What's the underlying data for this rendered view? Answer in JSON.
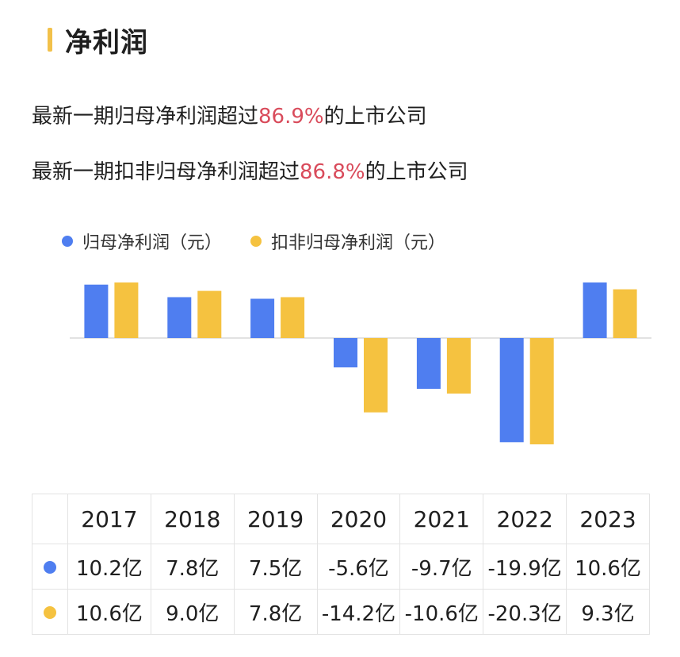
{
  "header": {
    "title": "净利润"
  },
  "lines": [
    {
      "prefix": "最新一期归母净利润超过",
      "highlight": "86.9%",
      "suffix": "的上市公司"
    },
    {
      "prefix": "最新一期扣非归母净利润超过",
      "highlight": "86.8%",
      "suffix": "的上市公司"
    }
  ],
  "colors": {
    "accent": "#f2c14a",
    "highlight": "#d94b5b",
    "series1": "#4f7ef0",
    "series2": "#f5c240"
  },
  "chart_data": {
    "type": "bar",
    "categories": [
      "2017",
      "2018",
      "2019",
      "2020",
      "2021",
      "2022",
      "2023"
    ],
    "series": [
      {
        "name": "归母净利润（元）",
        "values": [
          10.2,
          7.8,
          7.5,
          -5.6,
          -9.7,
          -19.9,
          10.6
        ]
      },
      {
        "name": "扣非归母净利润（元）",
        "values": [
          10.6,
          9.0,
          7.8,
          -14.2,
          -10.6,
          -20.3,
          9.3
        ]
      }
    ],
    "grid": false,
    "legend": "top-left"
  },
  "table": {
    "headers": [
      "2017",
      "2018",
      "2019",
      "2020",
      "2021",
      "2022",
      "2023"
    ],
    "rows": [
      [
        "10.2亿",
        "7.8亿",
        "7.5亿",
        "-5.6亿",
        "-9.7亿",
        "-19.9亿",
        "10.6亿"
      ],
      [
        "10.6亿",
        "9.0亿",
        "7.8亿",
        "-14.2亿",
        "-10.6亿",
        "-20.3亿",
        "9.3亿"
      ]
    ]
  }
}
